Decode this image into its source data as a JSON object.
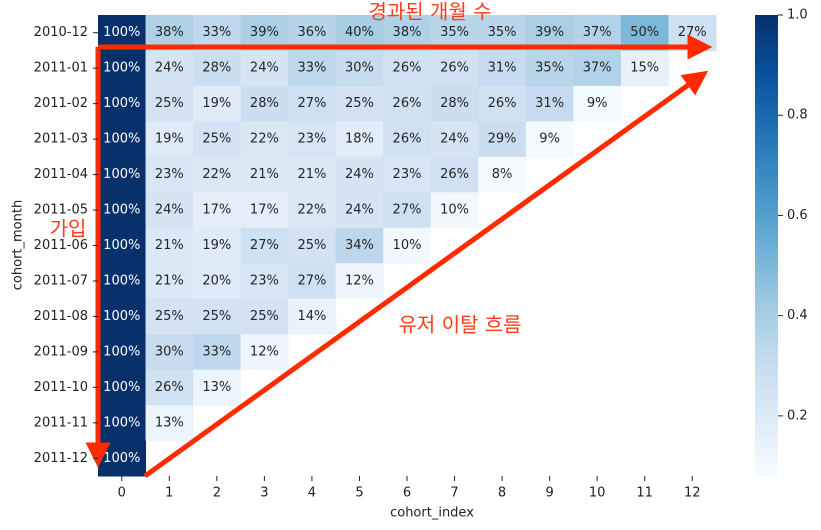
{
  "chart_data": {
    "type": "heatmap",
    "x_label": "cohort_index",
    "y_label": "cohort_month",
    "x": [
      0,
      1,
      2,
      3,
      4,
      5,
      6,
      7,
      8,
      9,
      10,
      11,
      12
    ],
    "y": [
      "2010-12",
      "2011-01",
      "2011-02",
      "2011-03",
      "2011-04",
      "2011-05",
      "2011-06",
      "2011-07",
      "2011-08",
      "2011-09",
      "2011-10",
      "2011-11",
      "2011-12"
    ],
    "values": [
      [
        1.0,
        0.38,
        0.33,
        0.39,
        0.36,
        0.4,
        0.38,
        0.35,
        0.35,
        0.39,
        0.37,
        0.5,
        0.27
      ],
      [
        1.0,
        0.24,
        0.28,
        0.24,
        0.33,
        0.3,
        0.26,
        0.26,
        0.31,
        0.35,
        0.37,
        0.15
      ],
      [
        1.0,
        0.25,
        0.19,
        0.28,
        0.27,
        0.25,
        0.26,
        0.28,
        0.26,
        0.31,
        0.09
      ],
      [
        1.0,
        0.19,
        0.25,
        0.22,
        0.23,
        0.18,
        0.26,
        0.24,
        0.29,
        0.09
      ],
      [
        1.0,
        0.23,
        0.22,
        0.21,
        0.21,
        0.24,
        0.23,
        0.26,
        0.08
      ],
      [
        1.0,
        0.24,
        0.17,
        0.17,
        0.22,
        0.24,
        0.27,
        0.1
      ],
      [
        1.0,
        0.21,
        0.19,
        0.27,
        0.25,
        0.34,
        0.1
      ],
      [
        1.0,
        0.21,
        0.2,
        0.23,
        0.27,
        0.12
      ],
      [
        1.0,
        0.25,
        0.25,
        0.25,
        0.14
      ],
      [
        1.0,
        0.3,
        0.33,
        0.12
      ],
      [
        1.0,
        0.26,
        0.13
      ],
      [
        1.0,
        0.13
      ],
      [
        1.0
      ]
    ],
    "value_labels": [
      [
        "100%",
        "38%",
        "33%",
        "39%",
        "36%",
        "40%",
        "38%",
        "35%",
        "35%",
        "39%",
        "37%",
        "50%",
        "27%"
      ],
      [
        "100%",
        "24%",
        "28%",
        "24%",
        "33%",
        "30%",
        "26%",
        "26%",
        "31%",
        "35%",
        "37%",
        "15%"
      ],
      [
        "100%",
        "25%",
        "19%",
        "28%",
        "27%",
        "25%",
        "26%",
        "28%",
        "26%",
        "31%",
        "9%"
      ],
      [
        "100%",
        "19%",
        "25%",
        "22%",
        "23%",
        "18%",
        "26%",
        "24%",
        "29%",
        "9%"
      ],
      [
        "100%",
        "23%",
        "22%",
        "21%",
        "21%",
        "24%",
        "23%",
        "26%",
        "8%"
      ],
      [
        "100%",
        "24%",
        "17%",
        "17%",
        "22%",
        "24%",
        "27%",
        "10%"
      ],
      [
        "100%",
        "21%",
        "19%",
        "27%",
        "25%",
        "34%",
        "10%"
      ],
      [
        "100%",
        "21%",
        "20%",
        "23%",
        "27%",
        "12%"
      ],
      [
        "100%",
        "25%",
        "25%",
        "25%",
        "14%"
      ],
      [
        "100%",
        "30%",
        "33%",
        "12%"
      ],
      [
        "100%",
        "26%",
        "13%"
      ],
      [
        "100%",
        "13%"
      ],
      [
        "100%"
      ]
    ],
    "colorscale": [
      "#f7fbff",
      "#deebf7",
      "#c6dbef",
      "#9ecae1",
      "#6baed6",
      "#4292c6",
      "#2171b5",
      "#08519c",
      "#08306b"
    ],
    "clim": [
      0.08,
      1.0
    ],
    "cticks": [
      0.2,
      0.4,
      0.6,
      0.8,
      {
        "value": 1.0,
        "label": "1.0"
      }
    ],
    "annotations": [
      "경과된 개월 수",
      "가입",
      "유저 이탈 흐름"
    ]
  }
}
